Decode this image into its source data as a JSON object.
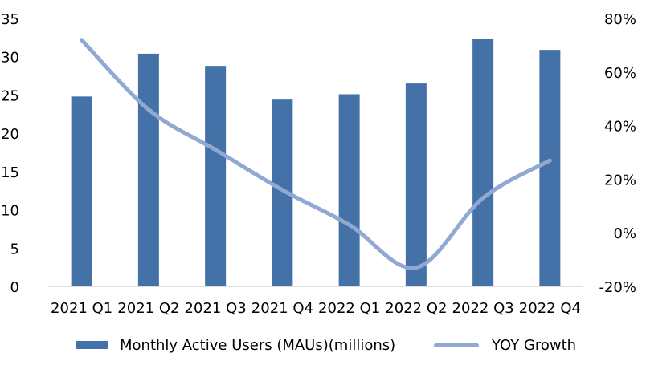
{
  "chart_data": {
    "type": "bar",
    "categories": [
      "2021 Q1",
      "2021 Q2",
      "2021 Q3",
      "2021 Q4",
      "2022 Q1",
      "2022 Q2",
      "2022 Q3",
      "2022 Q4"
    ],
    "series": [
      {
        "name": "Monthly Active Users (MAUs)(millions)",
        "type": "bar",
        "axis": "left",
        "color": "#4472a8",
        "values": [
          24.8,
          30.4,
          28.8,
          24.4,
          25.1,
          26.5,
          32.3,
          30.9
        ]
      },
      {
        "name": "YOY Growth",
        "type": "line",
        "axis": "right",
        "color": "#8fa9d3",
        "values": [
          72,
          46,
          31,
          16,
          3,
          -13,
          13,
          27
        ]
      }
    ],
    "y_left": {
      "min": 0,
      "max": 35,
      "ticks": [
        "0",
        "5",
        "10",
        "15",
        "20",
        "25",
        "30",
        "35"
      ]
    },
    "y_right": {
      "min": -20,
      "max": 80,
      "ticks": [
        "-20%",
        "0%",
        "20%",
        "40%",
        "60%",
        "80%"
      ]
    },
    "legend_position": "bottom",
    "grid": false
  }
}
